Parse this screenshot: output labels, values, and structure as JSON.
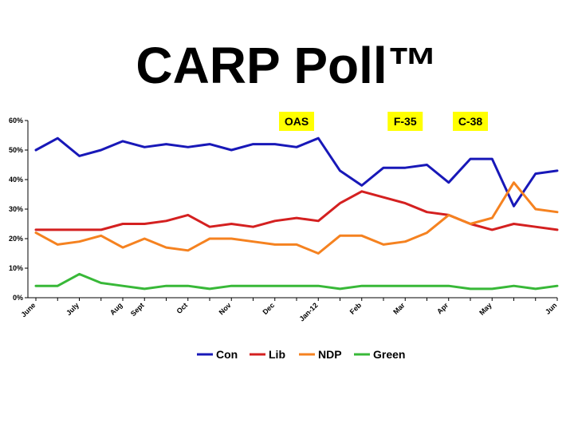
{
  "title": "CARP Poll™",
  "chart_data": {
    "type": "line",
    "title": "CARP Poll™",
    "xlabel": "",
    "ylabel": "",
    "ylim": [
      0,
      60
    ],
    "yticks": [
      "0%",
      "10%",
      "20%",
      "30%",
      "40%",
      "50%",
      "60%"
    ],
    "y_tick_values": [
      0,
      10,
      20,
      30,
      40,
      50,
      60
    ],
    "x_tick_labels": [
      {
        "label": "June",
        "i": 0
      },
      {
        "label": "July",
        "i": 2
      },
      {
        "label": "Aug",
        "i": 4
      },
      {
        "label": "Sept",
        "i": 5
      },
      {
        "label": "Oct",
        "i": 7
      },
      {
        "label": "Nov",
        "i": 9
      },
      {
        "label": "Dec",
        "i": 11
      },
      {
        "label": "Jan-12",
        "i": 13
      },
      {
        "label": "Feb",
        "i": 15
      },
      {
        "label": "Mar",
        "i": 17
      },
      {
        "label": "Apr",
        "i": 19
      },
      {
        "label": "May",
        "i": 21
      },
      {
        "label": "Jun",
        "i": 24
      }
    ],
    "n_points": 25,
    "grid": false,
    "legend_position": "bottom",
    "series": [
      {
        "name": "Con",
        "color": "#1818b8",
        "values": [
          50,
          54,
          48,
          50,
          53,
          51,
          52,
          51,
          52,
          50,
          52,
          52,
          51,
          54,
          43,
          38,
          44,
          44,
          45,
          39,
          47,
          47,
          31,
          42,
          43
        ]
      },
      {
        "name": "Lib",
        "color": "#d42020",
        "values": [
          23,
          23,
          23,
          23,
          25,
          25,
          26,
          28,
          24,
          25,
          24,
          26,
          27,
          26,
          32,
          36,
          34,
          32,
          29,
          28,
          25,
          23,
          25,
          24,
          23
        ]
      },
      {
        "name": "NDP",
        "color": "#f58220",
        "values": [
          22,
          18,
          19,
          21,
          17,
          20,
          17,
          16,
          20,
          20,
          19,
          18,
          18,
          15,
          21,
          21,
          18,
          19,
          22,
          28,
          25,
          27,
          39,
          30,
          29
        ]
      },
      {
        "name": "Green",
        "color": "#38b838",
        "values": [
          4,
          4,
          8,
          5,
          4,
          3,
          4,
          4,
          3,
          4,
          4,
          4,
          4,
          4,
          3,
          4,
          4,
          4,
          4,
          4,
          3,
          3,
          4,
          3,
          4
        ]
      }
    ],
    "annotations": [
      {
        "label": "OAS",
        "i": 12
      },
      {
        "label": "F-35",
        "i": 17
      },
      {
        "label": "C-38",
        "i": 20
      }
    ],
    "annotation_color": "#ffff00"
  }
}
